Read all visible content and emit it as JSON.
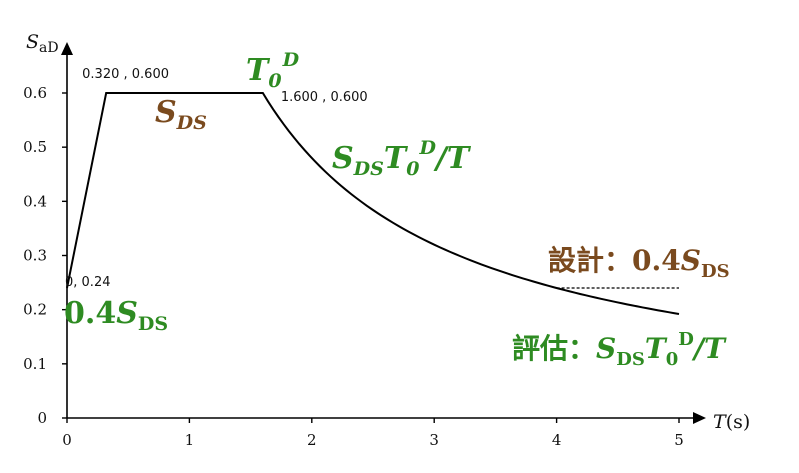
{
  "chart_data": {
    "type": "line",
    "ylabel": "S",
    "ylabel_sub": "aD",
    "xlabel": "T",
    "xlabel_unit": "(s)",
    "xlim": [
      0,
      5
    ],
    "ylim": [
      0,
      0.65
    ],
    "x_ticks": [
      0,
      1,
      2,
      3,
      4,
      5
    ],
    "y_ticks": [
      0,
      0.1,
      0.2,
      0.3,
      0.4,
      0.5,
      0.6
    ],
    "grid": false,
    "series": [
      {
        "style": "solid",
        "x": [
          0,
          0.32,
          1.6,
          1.8,
          2.0,
          2.25,
          2.5,
          2.75,
          3.0,
          3.25,
          3.5,
          3.75,
          4.0,
          4.25,
          4.5,
          4.75,
          5.0
        ],
        "y": [
          0.24,
          0.6,
          0.6,
          0.5333,
          0.48,
          0.4267,
          0.384,
          0.3491,
          0.32,
          0.2954,
          0.2743,
          0.256,
          0.24,
          0.2259,
          0.2133,
          0.2021,
          0.192
        ]
      },
      {
        "style": "dashed",
        "x": [
          4.0,
          5.0
        ],
        "y": [
          0.24,
          0.24
        ]
      }
    ],
    "point_labels": [
      {
        "text": "0, 0.24",
        "x": 0,
        "y": 0.24
      },
      {
        "text": "0.320 , 0.600",
        "x": 0.32,
        "y": 0.6
      },
      {
        "text": "1.600 , 0.600",
        "x": 1.6,
        "y": 0.6
      }
    ],
    "annotations": {
      "sds": {
        "main": "S",
        "sub": "DS",
        "color": "#7a4a1e"
      },
      "t0d": {
        "main": "T",
        "sub": "0",
        "sup": "D",
        "color": "#2e8b22"
      },
      "decay": {
        "main1": "S",
        "sub1": "DS",
        "main2": "T",
        "sub2": "0",
        "sup": "D",
        "tail": "/T",
        "color": "#2e8b22"
      },
      "design": {
        "prefix": "設計：",
        "coef": "0.4",
        "main": "S",
        "sub": "DS",
        "color": "#7a4a1e"
      },
      "pga": {
        "coef": "0.4",
        "main": "S",
        "sub": "DS",
        "color": "#2e8b22"
      },
      "eval": {
        "prefix": "評估：",
        "main1": "S",
        "sub1": "DS",
        "main2": "T",
        "sub2": "0",
        "sup": "D",
        "tail": "/T",
        "color": "#2e8b22"
      }
    }
  }
}
